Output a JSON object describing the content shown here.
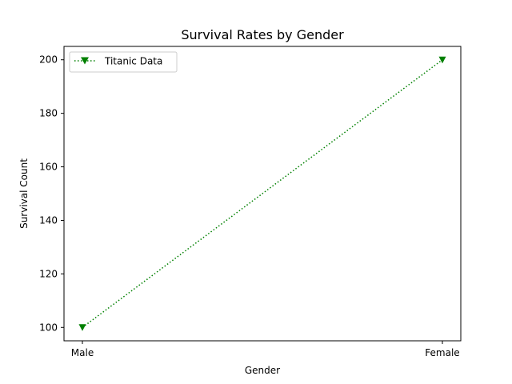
{
  "chart_data": {
    "type": "line",
    "title": "Survival Rates by Gender",
    "xlabel": "Gender",
    "ylabel": "Survival Count",
    "categories": [
      "Male",
      "Female"
    ],
    "series": [
      {
        "name": "Titanic Data",
        "values": [
          100,
          200
        ],
        "color": "#008000",
        "linestyle": "dotted",
        "marker": "triangle-down"
      }
    ],
    "yticks": [
      100,
      120,
      140,
      160,
      180,
      200
    ],
    "ylim": [
      95,
      205
    ],
    "grid": false,
    "legend_position": "top-left"
  }
}
